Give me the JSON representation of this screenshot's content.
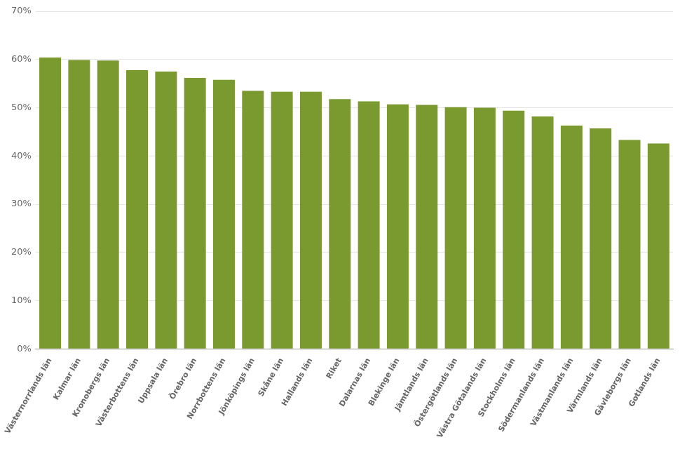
{
  "chart_data": {
    "type": "bar",
    "categories": [
      "Västernorrlands län",
      "Kalmar län",
      "Kronobergs län",
      "Västerbottens län",
      "Uppsala län",
      "Örebro län",
      "Norrbottens län",
      "Jönköpings län",
      "Skåne län",
      "Hallands län",
      "Riket",
      "Dalarnas län",
      "Blekinge län",
      "Jämtlands län",
      "Östergötlands län",
      "Västra Götalands län",
      "Stockholms län",
      "Södermanlands län",
      "Västmanlands län",
      "Värmlands län",
      "Gävleborgs län",
      "Gotlands län"
    ],
    "values": [
      0.604,
      0.599,
      0.598,
      0.578,
      0.575,
      0.562,
      0.558,
      0.535,
      0.533,
      0.533,
      0.518,
      0.513,
      0.507,
      0.506,
      0.501,
      0.5,
      0.494,
      0.482,
      0.463,
      0.457,
      0.433,
      0.426
    ],
    "color": "#7A9A30",
    "ylim": [
      0,
      0.7
    ],
    "yticks": [
      {
        "value": 0.0,
        "label": "0%"
      },
      {
        "value": 0.1,
        "label": "10%"
      },
      {
        "value": 0.2,
        "label": "20%"
      },
      {
        "value": 0.3,
        "label": "30%"
      },
      {
        "value": 0.4,
        "label": "40%"
      },
      {
        "value": 0.5,
        "label": "50%"
      },
      {
        "value": 0.6,
        "label": "60%"
      },
      {
        "value": 0.7,
        "label": "70%"
      }
    ],
    "grid": true
  }
}
